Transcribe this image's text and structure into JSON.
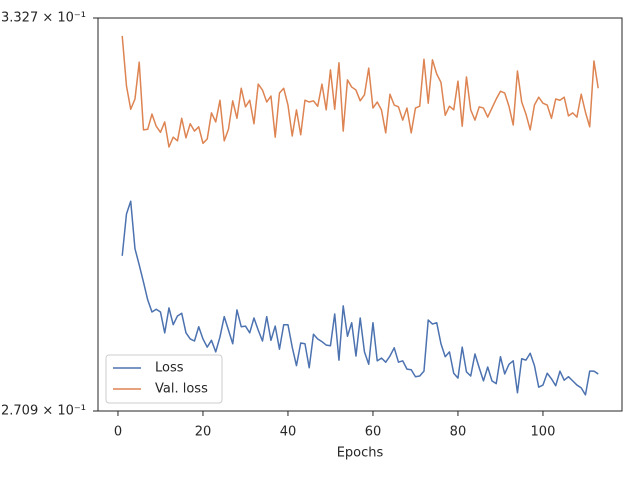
{
  "chart_data": {
    "type": "line",
    "xlabel": "Epochs",
    "x": [
      1,
      2,
      3,
      4,
      5,
      6,
      7,
      8,
      9,
      10,
      11,
      12,
      13,
      14,
      15,
      16,
      17,
      18,
      19,
      20,
      21,
      22,
      23,
      24,
      25,
      26,
      27,
      28,
      29,
      30,
      31,
      32,
      33,
      34,
      35,
      36,
      37,
      38,
      39,
      40,
      41,
      42,
      43,
      44,
      45,
      46,
      47,
      48,
      49,
      50,
      51,
      52,
      53,
      54,
      55,
      56,
      57,
      58,
      59,
      60,
      61,
      62,
      63,
      64,
      65,
      66,
      67,
      68,
      69,
      70,
      71,
      72,
      73,
      74,
      75,
      76,
      77,
      78,
      79,
      80,
      81,
      82,
      83,
      84,
      85,
      86,
      87,
      88,
      89,
      90,
      91,
      92,
      93,
      94,
      95,
      96,
      97,
      98,
      99,
      100,
      101,
      102,
      103,
      104,
      105,
      106,
      107,
      108,
      109,
      110,
      111,
      112,
      113
    ],
    "series": [
      {
        "name": "Loss",
        "color": "#4c72b0",
        "values": [
          0.2938,
          0.3003,
          0.3023,
          0.2949,
          0.2924,
          0.2898,
          0.2871,
          0.2853,
          0.2857,
          0.2853,
          0.2822,
          0.2859,
          0.2834,
          0.2847,
          0.2851,
          0.2822,
          0.2813,
          0.281,
          0.2831,
          0.2813,
          0.2801,
          0.2811,
          0.2794,
          0.2816,
          0.2846,
          0.2826,
          0.2806,
          0.2856,
          0.2831,
          0.2832,
          0.2822,
          0.2844,
          0.2826,
          0.281,
          0.2846,
          0.2811,
          0.2832,
          0.2798,
          0.2834,
          0.2834,
          0.2801,
          0.2774,
          0.2807,
          0.2806,
          0.2771,
          0.282,
          0.2813,
          0.2809,
          0.2804,
          0.2803,
          0.285,
          0.2782,
          0.2862,
          0.2817,
          0.2837,
          0.2788,
          0.2844,
          0.2794,
          0.2776,
          0.2837,
          0.2781,
          0.2785,
          0.2779,
          0.2788,
          0.28,
          0.2779,
          0.2781,
          0.2769,
          0.2768,
          0.2758,
          0.2759,
          0.2766,
          0.2841,
          0.2835,
          0.2837,
          0.2806,
          0.2787,
          0.2794,
          0.2763,
          0.2756,
          0.2801,
          0.2765,
          0.2759,
          0.2791,
          0.2771,
          0.2752,
          0.2772,
          0.2752,
          0.2748,
          0.2787,
          0.2762,
          0.2776,
          0.2781,
          0.2735,
          0.2784,
          0.2782,
          0.2792,
          0.2774,
          0.2743,
          0.2746,
          0.2763,
          0.2755,
          0.2745,
          0.2766,
          0.2753,
          0.2758,
          0.2752,
          0.2746,
          0.2742,
          0.2732,
          0.2766,
          0.2766,
          0.2762
        ]
      },
      {
        "name": "Val. loss",
        "color": "#dd8452",
        "values": [
          0.3296,
          0.3211,
          0.3172,
          0.3189,
          0.3251,
          0.3138,
          0.3139,
          0.3164,
          0.3144,
          0.3134,
          0.3151,
          0.311,
          0.3126,
          0.312,
          0.3157,
          0.3125,
          0.3148,
          0.3136,
          0.3143,
          0.3116,
          0.3123,
          0.3166,
          0.3151,
          0.3187,
          0.312,
          0.3139,
          0.3186,
          0.3157,
          0.3207,
          0.3176,
          0.3187,
          0.3148,
          0.3214,
          0.3204,
          0.3184,
          0.3194,
          0.3126,
          0.3199,
          0.3207,
          0.3179,
          0.3128,
          0.3171,
          0.313,
          0.3187,
          0.3184,
          0.3186,
          0.3177,
          0.3214,
          0.3171,
          0.3238,
          0.3172,
          0.325,
          0.3136,
          0.3221,
          0.3209,
          0.3204,
          0.3186,
          0.3196,
          0.3241,
          0.3174,
          0.3184,
          0.3171,
          0.3133,
          0.3197,
          0.3179,
          0.3176,
          0.3154,
          0.3174,
          0.3133,
          0.3174,
          0.3177,
          0.3256,
          0.3182,
          0.3255,
          0.3231,
          0.3217,
          0.3162,
          0.3177,
          0.3171,
          0.3219,
          0.3144,
          0.3226,
          0.3171,
          0.3154,
          0.3176,
          0.3174,
          0.3159,
          0.3174,
          0.3189,
          0.3202,
          0.3199,
          0.3177,
          0.3146,
          0.3236,
          0.3184,
          0.3164,
          0.3138,
          0.3179,
          0.3192,
          0.3182,
          0.3179,
          0.3157,
          0.3189,
          0.3187,
          0.3192,
          0.3161,
          0.3166,
          0.3159,
          0.3197,
          0.3167,
          0.3143,
          0.3253,
          0.3207
        ]
      }
    ],
    "xlim": [
      -4.7,
      118.6
    ],
    "xticks": [
      0,
      20,
      40,
      60,
      80,
      100
    ],
    "ylim": [
      0.2709,
      0.3327
    ],
    "yscale": "log",
    "yticks": [
      {
        "value": 0.2709,
        "label": "2.709 × 10⁻¹"
      },
      {
        "value": 0.3327,
        "label": "3.327 × 10⁻¹"
      }
    ],
    "grid": false,
    "legend": "lower left"
  }
}
